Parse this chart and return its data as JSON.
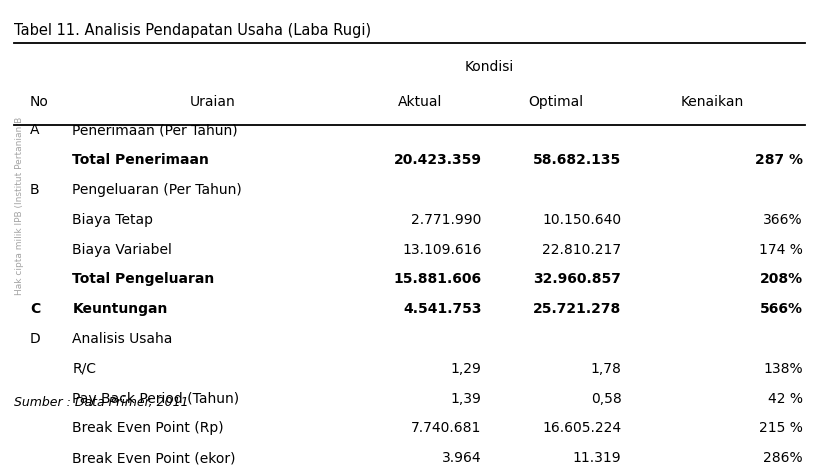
{
  "title": "Tabel 11. Analisis Pendapatan Usaha (Laba Rugi)",
  "footer": "Sumber : Data Primer, 2011",
  "watermark": "Hak cipta milik IPB (Institut Pertanian B",
  "headers": {
    "col0": "No",
    "col1": "Uraian",
    "col2_group": "Kondisi",
    "col2": "Aktual",
    "col3": "Optimal",
    "col4": "Kenaikan"
  },
  "rows": [
    {
      "no": "A",
      "uraian": "Penerimaan (Per Tahun)",
      "aktual": "",
      "optimal": "",
      "kenaikan": "",
      "bold": false
    },
    {
      "no": "",
      "uraian": "Total Penerimaan",
      "aktual": "20.423.359",
      "optimal": "58.682.135",
      "kenaikan": "287 %",
      "bold": true
    },
    {
      "no": "B",
      "uraian": "Pengeluaran (Per Tahun)",
      "aktual": "",
      "optimal": "",
      "kenaikan": "",
      "bold": false
    },
    {
      "no": "",
      "uraian": "Biaya Tetap",
      "aktual": "2.771.990",
      "optimal": "10.150.640",
      "kenaikan": "366%",
      "bold": false
    },
    {
      "no": "",
      "uraian": "Biaya Variabel",
      "aktual": "13.109.616",
      "optimal": "22.810.217",
      "kenaikan": "174 %",
      "bold": false
    },
    {
      "no": "",
      "uraian": "Total Pengeluaran",
      "aktual": "15.881.606",
      "optimal": "32.960.857",
      "kenaikan": "208%",
      "bold": true
    },
    {
      "no": "C",
      "uraian": "Keuntungan",
      "aktual": "4.541.753",
      "optimal": "25.721.278",
      "kenaikan": "566%",
      "bold": true
    },
    {
      "no": "D",
      "uraian": "Analisis Usaha",
      "aktual": "",
      "optimal": "",
      "kenaikan": "",
      "bold": false
    },
    {
      "no": "",
      "uraian": "R/C",
      "aktual": "1,29",
      "optimal": "1,78",
      "kenaikan": "138%",
      "bold": false
    },
    {
      "no": "",
      "uraian": "Pay Back Period (Tahun)",
      "aktual": "1,39",
      "optimal": "0,58",
      "kenaikan": "42 %",
      "bold": false
    },
    {
      "no": "",
      "uraian": "Break Even Point (Rp)",
      "aktual": "7.740.681",
      "optimal": "16.605.224",
      "kenaikan": "215 %",
      "bold": false
    },
    {
      "no": "",
      "uraian": "Break Even Point (ekor)",
      "aktual": "3.964",
      "optimal": "11.319",
      "kenaikan": "286%",
      "bold": false
    }
  ],
  "bg_color": "#ffffff",
  "line_color": "#000000",
  "title_fontsize": 10.5,
  "header_fontsize": 10,
  "cell_fontsize": 10,
  "footer_fontsize": 9
}
